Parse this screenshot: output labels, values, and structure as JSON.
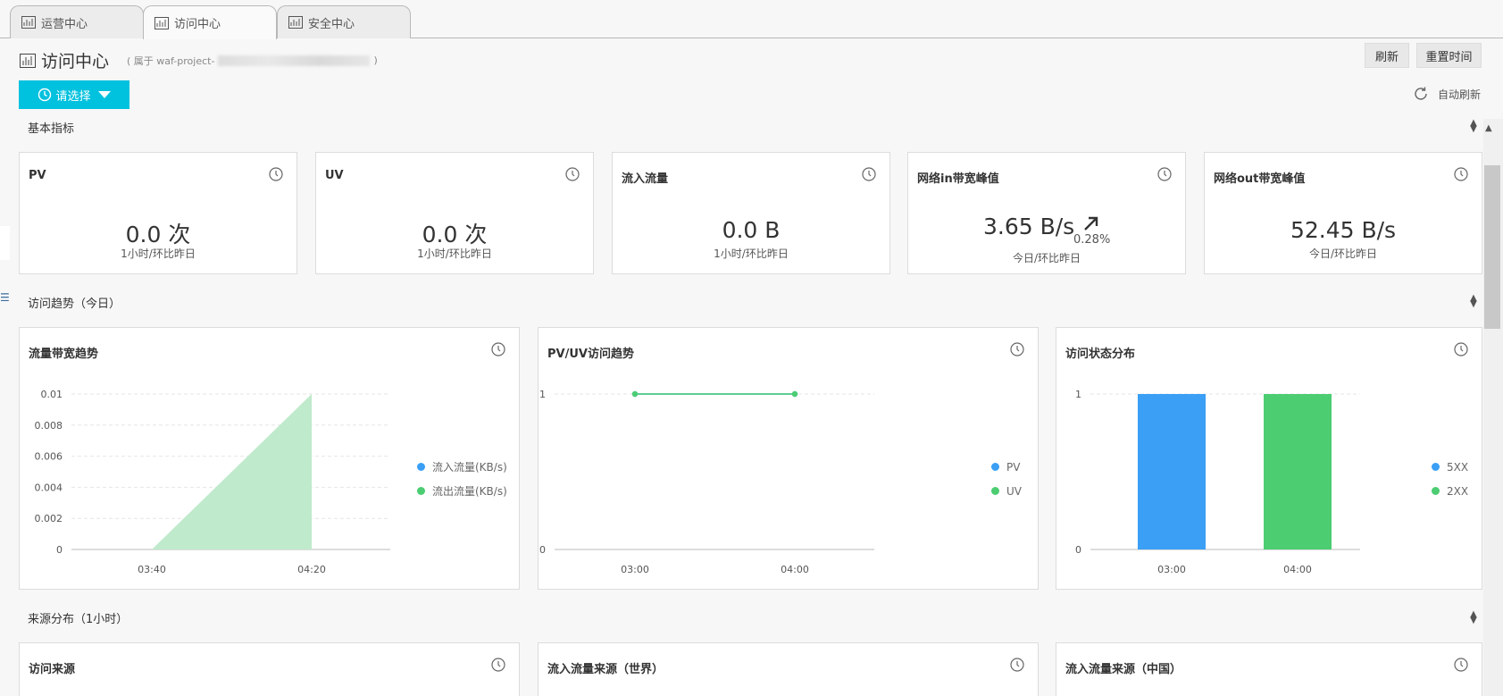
{
  "tabs": [
    {
      "label": "运营中心",
      "active": false
    },
    {
      "label": "访问中心",
      "active": true
    },
    {
      "label": "安全中心",
      "active": false
    }
  ],
  "header": {
    "title": "访问中心",
    "subtitle_prefix": "( 属于 waf-project-",
    "subtitle_suffix": ")"
  },
  "toolbar": {
    "refresh_label": "刷新",
    "reset_time_label": "重置时间",
    "select_label": "请选择",
    "auto_refresh_label": "自动刷新"
  },
  "sections": {
    "basic": "基本指标",
    "trend": "访问趋势（今日）",
    "source": "来源分布（1小时）"
  },
  "metrics": [
    {
      "title": "PV",
      "value": "0.0 次",
      "sub": "1小时/环比昨日"
    },
    {
      "title": "UV",
      "value": "0.0 次",
      "sub": "1小时/环比昨日"
    },
    {
      "title": "流入流量",
      "value": "0.0 B",
      "sub": "1小时/环比昨日"
    },
    {
      "title": "网络in带宽峰值",
      "value": "3.65 B/s",
      "change": "0.28%",
      "sub": "今日/环比昨日"
    },
    {
      "title": "网络out带宽峰值",
      "value": "52.45 B/s",
      "sub": "今日/环比昨日"
    }
  ],
  "trend_cards": [
    {
      "title": "流量带宽趋势"
    },
    {
      "title": "PV/UV访问趋势"
    },
    {
      "title": "访问状态分布"
    }
  ],
  "source_cards": [
    {
      "title": "访问来源"
    },
    {
      "title": "流入流量来源（世界）"
    },
    {
      "title": "流入流量来源（中国）"
    }
  ],
  "colors": {
    "accent": "#00c1de",
    "blue": "#3a9ff5",
    "green": "#4ccd72",
    "area_green": "#bfeacc"
  },
  "chart_data": [
    {
      "type": "area",
      "title": "流量带宽趋势",
      "categories": [
        "03:40",
        "04:20"
      ],
      "yticks": [
        "0",
        "0.002",
        "0.004",
        "0.006",
        "0.008",
        "0.01"
      ],
      "ylim": [
        0,
        0.01
      ],
      "series": [
        {
          "name": "流入流量(KB/s)",
          "values": [
            0,
            0
          ]
        },
        {
          "name": "流出流量(KB/s)",
          "values": [
            0,
            0.01
          ]
        }
      ],
      "legend": "right"
    },
    {
      "type": "line",
      "title": "PV/UV访问趋势",
      "categories": [
        "03:00",
        "04:00"
      ],
      "yticks": [
        "0",
        "1"
      ],
      "ylim": [
        0,
        1
      ],
      "series": [
        {
          "name": "PV",
          "values": [
            1,
            1
          ]
        },
        {
          "name": "UV",
          "values": [
            1,
            1
          ]
        }
      ],
      "legend": "right"
    },
    {
      "type": "bar",
      "title": "访问状态分布",
      "categories": [
        "03:00",
        "04:00"
      ],
      "yticks": [
        "0",
        "1"
      ],
      "ylim": [
        0,
        1
      ],
      "series": [
        {
          "name": "5XX",
          "values": [
            1,
            0
          ]
        },
        {
          "name": "2XX",
          "values": [
            0,
            1
          ]
        }
      ],
      "legend": "right"
    }
  ]
}
